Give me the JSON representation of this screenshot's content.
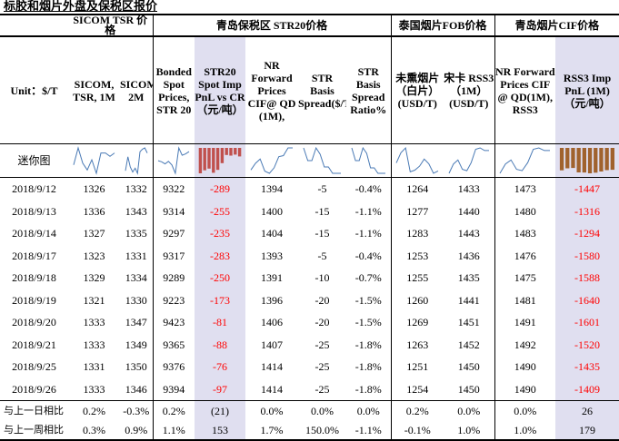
{
  "title": "标胶和烟片外盘及保税区报价",
  "groups": {
    "sicom": "SICOM TSR 价格",
    "qingdao": "青岛保税区 STR20价格",
    "thai": "泰国烟片FOB价格",
    "cif": "青岛烟片CIF价格"
  },
  "columns": [
    "Unit：$/T",
    "SICOM, TSR, 1M",
    "SICOM,TSR, 2M",
    "Bonded Spot Prices, STR 20",
    "STR20 Spot Imp PnL vs CR（元/吨）",
    "NR Forward Prices CIF@ QD (1M),",
    "STR Basis Spread($/T)",
    "STR Basis Spread Ratio%",
    "未熏烟片（白片）(USD/T)",
    "宋卡 RSS3（1M）(USD/T)",
    "NR Forward Prices CIF @ QD(1M), RSS3",
    "RSS3 Imp PnL (1M)（元/吨）"
  ],
  "sparkline_label": "迷你图",
  "rows": [
    {
      "date": "2018/9/12",
      "v": [
        "1326",
        "1332",
        "9322",
        "-289",
        "1394",
        "-5",
        "-0.4%",
        "1264",
        "1433",
        "1473",
        "-1447"
      ]
    },
    {
      "date": "2018/9/13",
      "v": [
        "1336",
        "1343",
        "9314",
        "-255",
        "1400",
        "-15",
        "-1.1%",
        "1277",
        "1440",
        "1480",
        "-1316"
      ]
    },
    {
      "date": "2018/9/14",
      "v": [
        "1327",
        "1335",
        "9297",
        "-235",
        "1404",
        "-15",
        "-1.1%",
        "1283",
        "1443",
        "1483",
        "-1294"
      ]
    },
    {
      "date": "2018/9/17",
      "v": [
        "1323",
        "1331",
        "9317",
        "-283",
        "1393",
        "-5",
        "-0.4%",
        "1253",
        "1436",
        "1476",
        "-1580"
      ]
    },
    {
      "date": "2018/9/18",
      "v": [
        "1329",
        "1334",
        "9289",
        "-250",
        "1391",
        "-10",
        "-0.7%",
        "1255",
        "1435",
        "1475",
        "-1588"
      ]
    },
    {
      "date": "2018/9/19",
      "v": [
        "1321",
        "1330",
        "9223",
        "-173",
        "1396",
        "-20",
        "-1.5%",
        "1260",
        "1441",
        "1481",
        "-1640"
      ]
    },
    {
      "date": "2018/9/20",
      "v": [
        "1333",
        "1347",
        "9423",
        "-81",
        "1406",
        "-20",
        "-1.5%",
        "1269",
        "1451",
        "1491",
        "-1601"
      ]
    },
    {
      "date": "2018/9/21",
      "v": [
        "1333",
        "1349",
        "9365",
        "-88",
        "1407",
        "-25",
        "-1.8%",
        "1263",
        "1452",
        "1492",
        "-1520"
      ]
    },
    {
      "date": "2018/9/25",
      "v": [
        "1331",
        "1350",
        "9376",
        "-76",
        "1414",
        "-25",
        "-1.8%",
        "1251",
        "1450",
        "1490",
        "-1435"
      ]
    },
    {
      "date": "2018/9/26",
      "v": [
        "1333",
        "1346",
        "9394",
        "-97",
        "1414",
        "-25",
        "-1.8%",
        "1254",
        "1450",
        "1490",
        "-1409"
      ]
    }
  ],
  "footer": [
    {
      "label": "与上一日相比",
      "v": [
        "0.2%",
        "-0.3%",
        "0.2%",
        "(21)",
        "0.0%",
        "0.0%",
        "0.0%",
        "0.2%",
        "0.0%",
        "0.0%",
        "26"
      ]
    },
    {
      "label": "与上一周相比",
      "v": [
        "0.3%",
        "0.9%",
        "1.1%",
        "153",
        "1.7%",
        "150.0%",
        "-1.1%",
        "-0.1%",
        "1.0%",
        "1.0%",
        "179"
      ]
    }
  ],
  "colors": {
    "negative": "#ff0000",
    "highlight": "#e0dff0",
    "sparkline": "#4a7ab5",
    "bar_neg_red": "#c0504d",
    "bar_neg_brown": "#a0622d"
  }
}
